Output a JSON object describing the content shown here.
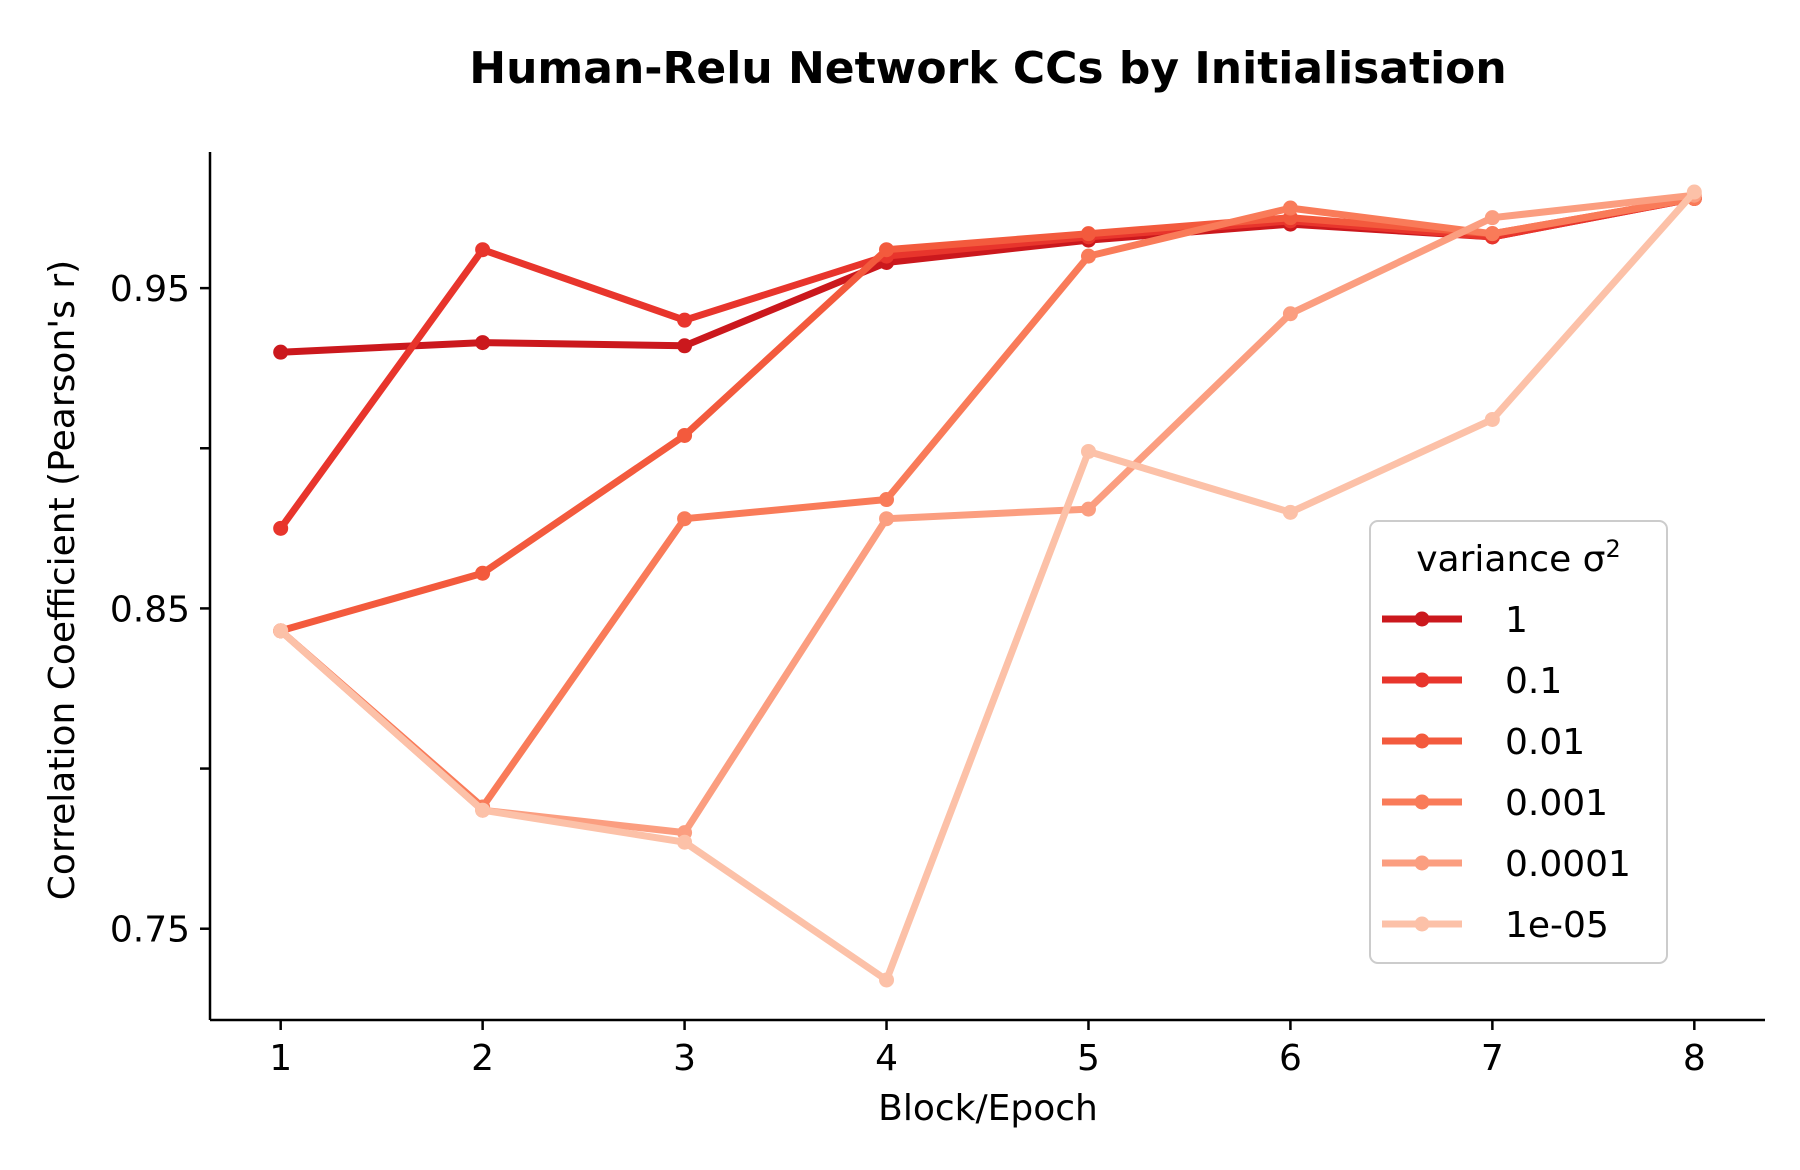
{
  "chart_data": {
    "type": "line",
    "title": "Human-Relu Network CCs by Initialisation",
    "xlabel": "Block/Epoch",
    "ylabel": "Correlation Coefficient (Pearson's r)",
    "x": [
      1,
      2,
      3,
      4,
      5,
      6,
      7,
      8
    ],
    "xticks": [
      "1",
      "2",
      "3",
      "4",
      "5",
      "6",
      "7",
      "8"
    ],
    "yticks": [
      {
        "value": 0.75,
        "label": "0.75"
      },
      {
        "value": 0.8,
        "label": ""
      },
      {
        "value": 0.85,
        "label": "0.85"
      },
      {
        "value": 0.9,
        "label": ""
      },
      {
        "value": 0.95,
        "label": "0.95"
      }
    ],
    "xlim": [
      0.65,
      8.35
    ],
    "ylim": [
      0.7215,
      0.9925
    ],
    "grid": false,
    "legend": {
      "title": "variance σ",
      "title_superscript": "2",
      "placement": "center-right"
    },
    "series": [
      {
        "name": "1",
        "color": "#cb181d",
        "values": [
          0.93,
          0.933,
          0.932,
          0.958,
          0.965,
          0.97,
          0.966,
          0.978
        ]
      },
      {
        "name": "0.1",
        "color": "#e8352c",
        "values": [
          0.875,
          0.962,
          0.94,
          0.96,
          0.966,
          0.971,
          0.966,
          0.978
        ]
      },
      {
        "name": "0.01",
        "color": "#f35a3d",
        "values": [
          0.843,
          0.861,
          0.904,
          0.962,
          0.967,
          0.972,
          0.967,
          0.978
        ]
      },
      {
        "name": "0.001",
        "color": "#f97b59",
        "values": [
          0.843,
          0.788,
          0.878,
          0.884,
          0.96,
          0.975,
          0.967,
          0.978
        ]
      },
      {
        "name": "0.0001",
        "color": "#fb9e80",
        "values": [
          0.843,
          0.787,
          0.78,
          0.878,
          0.881,
          0.942,
          0.972,
          0.979
        ]
      },
      {
        "name": "1e-05",
        "color": "#fcc1a8",
        "values": [
          0.843,
          0.787,
          0.777,
          0.734,
          0.899,
          0.88,
          0.909,
          0.98
        ]
      }
    ]
  }
}
